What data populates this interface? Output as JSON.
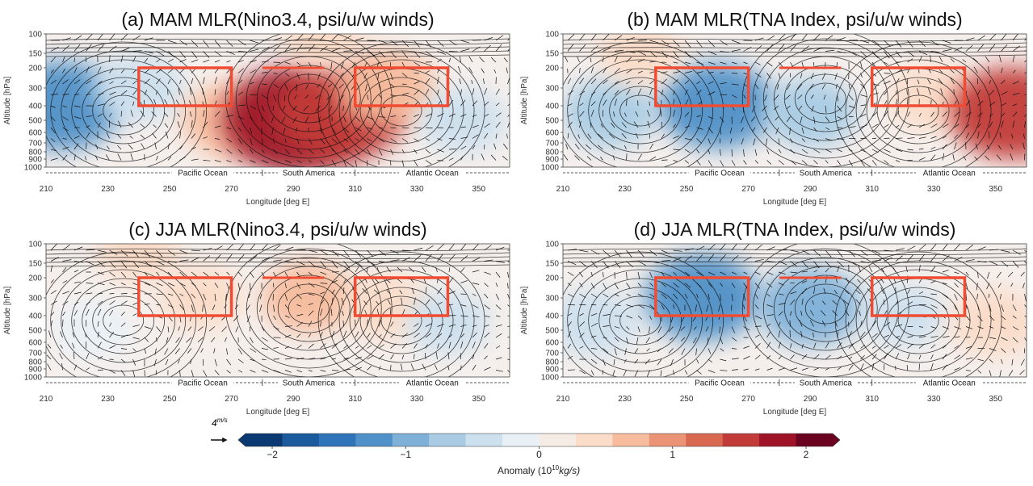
{
  "chart_data": [
    {
      "type": "heatmap",
      "panel": "a",
      "title": "(a) MAM MLR(Nino3.4, psi/u/w winds)",
      "xlabel": "Longitude [deg E]",
      "ylabel": "Altitude [hPa]",
      "xlim": [
        210,
        360
      ],
      "ylim": [
        1000,
        100
      ],
      "xticks": [
        "210",
        "230",
        "250",
        "270",
        "290",
        "310",
        "330",
        "350"
      ],
      "yticks": [
        "100",
        "150",
        "200",
        "300",
        "400",
        "500",
        "600",
        "700",
        "800",
        "900",
        "1000"
      ],
      "regions": [
        "Pacific Ocean",
        "South America",
        "Atlantic Ocean"
      ],
      "boxes": [
        {
          "lon": [
            240,
            270
          ],
          "p": [
            200,
            400
          ]
        },
        {
          "lon": [
            310,
            340
          ],
          "p": [
            200,
            400
          ]
        }
      ],
      "bar": {
        "lon": [
          280,
          300
        ],
        "p": 200
      },
      "anomalies": [
        {
          "lon": 215,
          "p": 400,
          "value": -1.3
        },
        {
          "lon": 240,
          "p": 300,
          "value": -0.5
        },
        {
          "lon": 270,
          "p": 500,
          "value": 0.7
        },
        {
          "lon": 290,
          "p": 500,
          "value": 1.9
        },
        {
          "lon": 305,
          "p": 450,
          "value": 1.6
        },
        {
          "lon": 320,
          "p": 300,
          "value": 0.8
        },
        {
          "lon": 345,
          "p": 500,
          "value": -0.4
        },
        {
          "lon": 300,
          "p": 120,
          "value": 0.3
        }
      ]
    },
    {
      "type": "heatmap",
      "panel": "b",
      "title": "(b) MAM MLR(TNA Index, psi/u/w winds)",
      "xlabel": "Longitude [deg E]",
      "ylabel": "Altitude [hPa]",
      "xlim": [
        210,
        360
      ],
      "ylim": [
        1000,
        100
      ],
      "xticks": [
        "210",
        "230",
        "250",
        "270",
        "290",
        "310",
        "330",
        "350"
      ],
      "yticks": [
        "100",
        "150",
        "200",
        "300",
        "400",
        "500",
        "600",
        "700",
        "800",
        "900",
        "1000"
      ],
      "regions": [
        "Pacific Ocean",
        "South America",
        "Atlantic Ocean"
      ],
      "boxes": [
        {
          "lon": [
            240,
            270
          ],
          "p": [
            200,
            400
          ]
        },
        {
          "lon": [
            310,
            340
          ],
          "p": [
            200,
            400
          ]
        }
      ],
      "bar": {
        "lon": [
          280,
          300
        ],
        "p": 200
      },
      "anomalies": [
        {
          "lon": 225,
          "p": 450,
          "value": -0.6
        },
        {
          "lon": 260,
          "p": 400,
          "value": -1.2
        },
        {
          "lon": 290,
          "p": 450,
          "value": -0.6
        },
        {
          "lon": 330,
          "p": 350,
          "value": 0.5
        },
        {
          "lon": 355,
          "p": 450,
          "value": 1.4
        },
        {
          "lon": 235,
          "p": 150,
          "value": 0.3
        }
      ]
    },
    {
      "type": "heatmap",
      "panel": "c",
      "title": "(c) JJA MLR(Nino3.4, psi/u/w winds)",
      "xlabel": "Longitude [deg E]",
      "ylabel": "Altitude [hPa]",
      "xlim": [
        210,
        360
      ],
      "ylim": [
        1000,
        100
      ],
      "xticks": [
        "210",
        "230",
        "250",
        "270",
        "290",
        "310",
        "330",
        "350"
      ],
      "yticks": [
        "100",
        "150",
        "200",
        "300",
        "400",
        "500",
        "600",
        "700",
        "800",
        "900",
        "1000"
      ],
      "regions": [
        "Pacific Ocean",
        "South America",
        "Atlantic Ocean"
      ],
      "boxes": [
        {
          "lon": [
            240,
            270
          ],
          "p": [
            200,
            400
          ]
        },
        {
          "lon": [
            310,
            340
          ],
          "p": [
            200,
            400
          ]
        }
      ],
      "bar": {
        "lon": [
          280,
          300
        ],
        "p": 200
      },
      "anomalies": [
        {
          "lon": 225,
          "p": 500,
          "value": -0.2
        },
        {
          "lon": 260,
          "p": 300,
          "value": 0.3
        },
        {
          "lon": 295,
          "p": 300,
          "value": 0.6
        },
        {
          "lon": 320,
          "p": 350,
          "value": 0.4
        },
        {
          "lon": 340,
          "p": 450,
          "value": -0.3
        },
        {
          "lon": 240,
          "p": 120,
          "value": 0.3
        }
      ]
    },
    {
      "type": "heatmap",
      "panel": "d",
      "title": "(d) JJA MLR(TNA Index, psi/u/w winds)",
      "xlabel": "Longitude [deg E]",
      "ylabel": "Altitude [hPa]",
      "xlim": [
        210,
        360
      ],
      "ylim": [
        1000,
        100
      ],
      "xticks": [
        "210",
        "230",
        "250",
        "270",
        "290",
        "310",
        "330",
        "350"
      ],
      "yticks": [
        "100",
        "150",
        "200",
        "300",
        "400",
        "500",
        "600",
        "700",
        "800",
        "900",
        "1000"
      ],
      "regions": [
        "Pacific Ocean",
        "South America",
        "Atlantic Ocean"
      ],
      "boxes": [
        {
          "lon": [
            240,
            270
          ],
          "p": [
            200,
            400
          ]
        },
        {
          "lon": [
            310,
            340
          ],
          "p": [
            200,
            400
          ]
        }
      ],
      "bar": {
        "lon": [
          280,
          300
        ],
        "p": 200
      },
      "anomalies": [
        {
          "lon": 220,
          "p": 450,
          "value": -0.5
        },
        {
          "lon": 255,
          "p": 300,
          "value": -1.2
        },
        {
          "lon": 290,
          "p": 350,
          "value": -0.9
        },
        {
          "lon": 320,
          "p": 400,
          "value": -0.3
        },
        {
          "lon": 350,
          "p": 450,
          "value": 0.5
        }
      ]
    }
  ],
  "colorbar": {
    "ticks": [
      "−2",
      "−1",
      "0",
      "1",
      "2"
    ],
    "tick_values": [
      -2,
      -1,
      0,
      1,
      2
    ],
    "range": [
      -2.2,
      2.2
    ],
    "label": "Anomaly (10",
    "label_exp": "10",
    "label_unit": "kg/s)",
    "colors": [
      "#0b3a73",
      "#1b5a9c",
      "#2f73b8",
      "#4f91c8",
      "#7fb0d8",
      "#a9cce4",
      "#cde0ee",
      "#eaf1f6",
      "#f6ece6",
      "#fbdcc8",
      "#f6bc9d",
      "#ea9475",
      "#d8684f",
      "#c13b38",
      "#9e1328",
      "#6a0220"
    ]
  },
  "wind_reference": {
    "label": "4",
    "label_unit": "m/s"
  },
  "style": {
    "box_color": "#f04c34",
    "contour_color": "#111111",
    "arrow_color": "#111111"
  }
}
